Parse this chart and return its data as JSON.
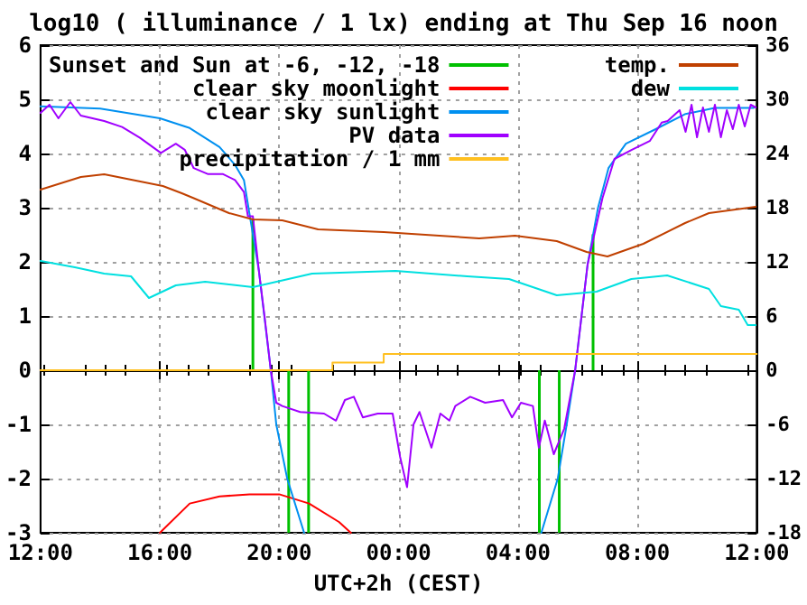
{
  "chart_data": {
    "type": "line",
    "title": "log10 ( illuminance / 1 lx) ending at Thu Sep 16 noon",
    "xlabel": "UTC+2h (CEST)",
    "xlim": [
      "--09-15T12:00",
      "--09-16T12:00"
    ],
    "xticks": [
      {
        "value": "--09-15T12:00",
        "label": "12:00"
      },
      {
        "value": "--09-15T16:00",
        "label": "16:00"
      },
      {
        "value": "--09-15T20:00",
        "label": "20:00"
      },
      {
        "value": "--09-16T00:00",
        "label": "00:00"
      },
      {
        "value": "--09-16T04:00",
        "label": "04:00"
      },
      {
        "value": "--09-16T08:00",
        "label": "08:00"
      },
      {
        "value": "--09-16T12:00",
        "label": "12:00"
      }
    ],
    "ylim": [
      -3,
      6
    ],
    "yticks": [
      -3,
      -2,
      -1,
      0,
      1,
      2,
      3,
      4,
      5,
      6
    ],
    "y2lim": [
      -18,
      36
    ],
    "y2ticks": [
      -18,
      -12,
      -6,
      0,
      6,
      12,
      18,
      24,
      30,
      36
    ],
    "grid": true,
    "legend": "top",
    "marker": "none",
    "series": [
      {
        "name": "Sunset and Sun at -6, -12, -18",
        "type": "bar",
        "color": "#00c000",
        "x": [
          "--09-15T19:07",
          "--09-15T20:19",
          "--09-15T20:59",
          "--09-16T04:43",
          "--09-16T05:23",
          "--09-16T06:31"
        ],
        "values": [
          2.79,
          -3,
          -3,
          -3,
          -3,
          2.51
        ]
      },
      {
        "name": "clear sky moonlight",
        "color": "#ff0000",
        "x": [
          "--09-15T16:00",
          "--09-15T17:00",
          "--09-15T18:00",
          "--09-15T19:00",
          "--09-15T20:00",
          "--09-15T21:00",
          "--09-15T22:00",
          "--09-15T22:24"
        ],
        "values": [
          -3,
          -2.46,
          -2.33,
          -2.29,
          -2.29,
          -2.46,
          -2.8,
          -3
        ]
      },
      {
        "name": "clear sky sunlight",
        "color": "#0090f0",
        "x": [
          "--09-15T12:00",
          "--09-15T14:00",
          "--09-15T16:00",
          "--09-15T17:00",
          "--09-15T18:00",
          "--09-15T18:31",
          "--09-15T18:49",
          "--09-15T19:01",
          "--09-15T19:19",
          "--09-15T19:43",
          "--09-15T19:54",
          "--09-15T20:16",
          "--09-15T20:50",
          "--09-16T00:00",
          "--09-16T04:47",
          "--09-16T05:20",
          "--09-16T05:38",
          "--09-16T05:55",
          "--09-16T06:20",
          "--09-16T06:41",
          "--09-16T07:02",
          "--09-16T07:37",
          "--09-16T08:37",
          "--09-16T09:37",
          "--09-16T10:36",
          "--09-16T11:54"
        ],
        "values": [
          4.87,
          4.83,
          4.65,
          4.47,
          4.12,
          3.79,
          3.51,
          2.84,
          1.84,
          0,
          -1,
          -2,
          -3,
          null,
          -3,
          -2,
          -1,
          0,
          1.95,
          3.0,
          3.73,
          4.18,
          4.45,
          4.73,
          4.84,
          4.84
        ]
      },
      {
        "name": "PV data",
        "color": "#a000ff",
        "x": [
          "--09-15T12:00",
          "--09-15T12:18",
          "--09-15T12:36",
          "--09-15T13:00",
          "--09-15T13:21",
          "--09-15T14:08",
          "--09-15T14:44",
          "--09-15T15:20",
          "--09-15T16:02",
          "--09-15T16:32",
          "--09-15T16:50",
          "--09-15T17:08",
          "--09-15T17:37",
          "--09-15T18:07",
          "--09-15T18:31",
          "--09-15T18:49",
          "--09-15T18:57",
          "--09-15T19:07",
          "--09-15T19:19",
          "--09-15T19:31",
          "--09-15T19:43",
          "--09-15T19:54",
          "--09-15T20:06",
          "--09-15T20:42",
          "--09-15T21:30",
          "--09-15T21:54",
          "--09-15T22:12",
          "--09-15T22:30",
          "--09-15T22:48",
          "--09-15T23:18",
          "--09-15T23:48",
          "--09-16T00:03",
          "--09-16T00:17",
          "--09-16T00:30",
          "--09-16T00:42",
          "--09-16T01:06",
          "--09-16T01:24",
          "--09-16T01:42",
          "--09-16T01:54",
          "--09-16T02:24",
          "--09-16T02:54",
          "--09-16T03:30",
          "--09-16T03:48",
          "--09-16T04:06",
          "--09-16T04:30",
          "--09-16T04:42",
          "--09-16T04:54",
          "--09-16T05:12",
          "--09-16T05:33",
          "--09-16T05:55",
          "--09-16T06:20",
          "--09-16T06:50",
          "--09-16T07:14",
          "--09-16T07:49",
          "--09-16T08:25",
          "--09-16T08:49",
          "--09-16T09:01",
          "--09-16T09:25",
          "--09-16T09:37",
          "--09-16T09:49",
          "--09-16T10:00",
          "--09-16T10:12",
          "--09-16T10:24",
          "--09-16T10:36",
          "--09-16T10:48",
          "--09-16T11:00",
          "--09-16T11:12",
          "--09-16T11:24",
          "--09-16T11:36",
          "--09-16T11:48",
          "--09-16T11:58"
        ],
        "values": [
          4.75,
          4.9,
          4.65,
          4.95,
          4.7,
          4.6,
          4.49,
          4.29,
          4.01,
          4.18,
          4.07,
          3.73,
          3.62,
          3.62,
          3.51,
          3.29,
          2.84,
          2.84,
          1.84,
          0.95,
          0,
          -0.6,
          -0.66,
          -0.77,
          -0.8,
          -0.93,
          -0.55,
          -0.49,
          -0.87,
          -0.8,
          -0.8,
          -1.6,
          -2.16,
          -1.0,
          -0.77,
          -1.43,
          -0.8,
          -0.93,
          -0.66,
          -0.49,
          -0.6,
          -0.55,
          -0.87,
          -0.6,
          -0.66,
          -1.43,
          -0.93,
          -1.55,
          -1.08,
          0,
          1.95,
          3.18,
          3.9,
          4.07,
          4.23,
          4.57,
          4.6,
          4.8,
          4.4,
          4.9,
          4.3,
          4.85,
          4.4,
          4.9,
          4.3,
          4.8,
          4.45,
          4.9,
          4.5,
          4.9,
          4.85
        ]
      },
      {
        "name": "precipitation / 1 mm",
        "type": "step",
        "color": "#ffc020",
        "x": [
          "--09-15T12:00",
          "--09-15T21:47",
          "--09-15T23:30",
          "--09-16T12:00"
        ],
        "values": [
          0,
          0.14,
          0.3,
          0.3
        ]
      },
      {
        "name": "temp.",
        "axis": "y2",
        "color": "#c04000",
        "x": [
          "--09-15T12:00",
          "--09-15T13:21",
          "--09-15T14:08",
          "--09-15T16:06",
          "--09-15T16:44",
          "--09-15T17:06",
          "--09-15T18:19",
          "--09-15T19:07",
          "--09-15T20:06",
          "--09-15T21:18",
          "--09-15T23:30",
          "--09-16T02:42",
          "--09-16T03:54",
          "--09-16T05:18",
          "--09-16T06:18",
          "--09-16T07:00",
          "--09-16T08:12",
          "--09-16T09:36",
          "--09-16T10:24",
          "--09-16T11:58"
        ],
        "values": [
          20.0,
          21.4,
          21.7,
          20.4,
          19.6,
          19.1,
          17.4,
          16.7,
          16.6,
          15.6,
          15.3,
          14.6,
          14.9,
          14.3,
          13.1,
          12.6,
          14.0,
          16.3,
          17.4,
          18.1
        ]
      },
      {
        "name": "dew",
        "axis": "y2",
        "color": "#00e0e0",
        "x": [
          "--09-15T12:00",
          "--09-15T13:09",
          "--09-15T14:08",
          "--09-15T15:02",
          "--09-15T15:38",
          "--09-15T16:32",
          "--09-15T17:31",
          "--09-15T19:07",
          "--09-15T21:06",
          "--09-15T23:54",
          "--09-16T02:18",
          "--09-16T03:42",
          "--09-16T05:18",
          "--09-16T06:38",
          "--09-16T07:48",
          "--09-16T09:00",
          "--09-16T10:24",
          "--09-16T10:48",
          "--09-16T11:24",
          "--09-16T11:42",
          "--09-16T11:58"
        ],
        "values": [
          12.1,
          11.4,
          10.7,
          10.4,
          8.0,
          9.4,
          9.8,
          9.2,
          10.7,
          11.0,
          10.4,
          10.1,
          8.3,
          8.7,
          10.1,
          10.5,
          9.0,
          7.1,
          6.7,
          5.0,
          5.0
        ]
      }
    ]
  }
}
